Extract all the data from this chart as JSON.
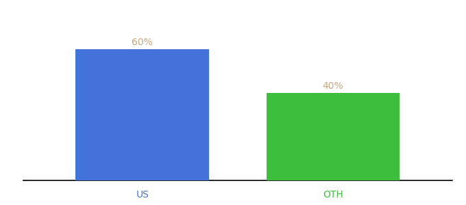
{
  "categories": [
    "US",
    "OTH"
  ],
  "values": [
    60,
    40
  ],
  "bar_colors": [
    "#4472db",
    "#3dbf3d"
  ],
  "label_color": "#c8a882",
  "label_fontsize": 10,
  "xlabel_fontsize": 10,
  "xlabel_color": "#4472db",
  "xlabel_color_oth": "#3dbf3d",
  "background_color": "#ffffff",
  "ylim": [
    0,
    75
  ],
  "bar_width": 0.28,
  "annotations": [
    "60%",
    "40%"
  ]
}
